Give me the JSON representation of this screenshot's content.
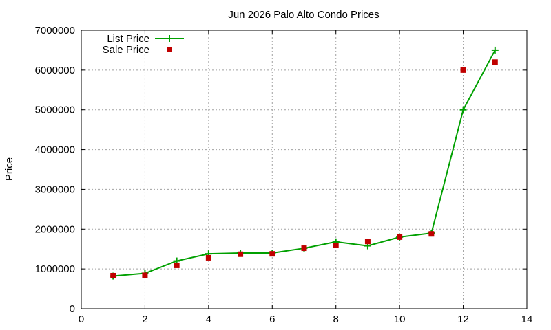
{
  "chart_data": {
    "type": "line",
    "title": "Jun 2026 Palo Alto Condo Prices",
    "xlabel": "",
    "ylabel": "Price",
    "xlim": [
      0,
      14
    ],
    "ylim": [
      0,
      7000000
    ],
    "x_ticks": [
      0,
      2,
      4,
      6,
      8,
      10,
      12,
      14
    ],
    "y_ticks": [
      0,
      1000000,
      2000000,
      3000000,
      4000000,
      5000000,
      6000000,
      7000000
    ],
    "grid": true,
    "legend_position": "top-left",
    "series": [
      {
        "name": "List Price",
        "style": "line-plus",
        "color": "#00a000",
        "x": [
          1,
          2,
          3,
          4,
          5,
          6,
          7,
          8,
          9,
          10,
          11,
          12,
          13
        ],
        "y": [
          820000,
          890000,
          1200000,
          1380000,
          1400000,
          1400000,
          1520000,
          1680000,
          1580000,
          1800000,
          1900000,
          5000000,
          6500000
        ]
      },
      {
        "name": "Sale Price",
        "style": "square-points",
        "color": "#c00000",
        "x": [
          1,
          2,
          3,
          4,
          5,
          6,
          7,
          8,
          9,
          10,
          11,
          12,
          13
        ],
        "y": [
          830000,
          840000,
          1090000,
          1280000,
          1370000,
          1380000,
          1520000,
          1590000,
          1690000,
          1800000,
          1880000,
          6000000,
          6200000
        ]
      }
    ]
  }
}
